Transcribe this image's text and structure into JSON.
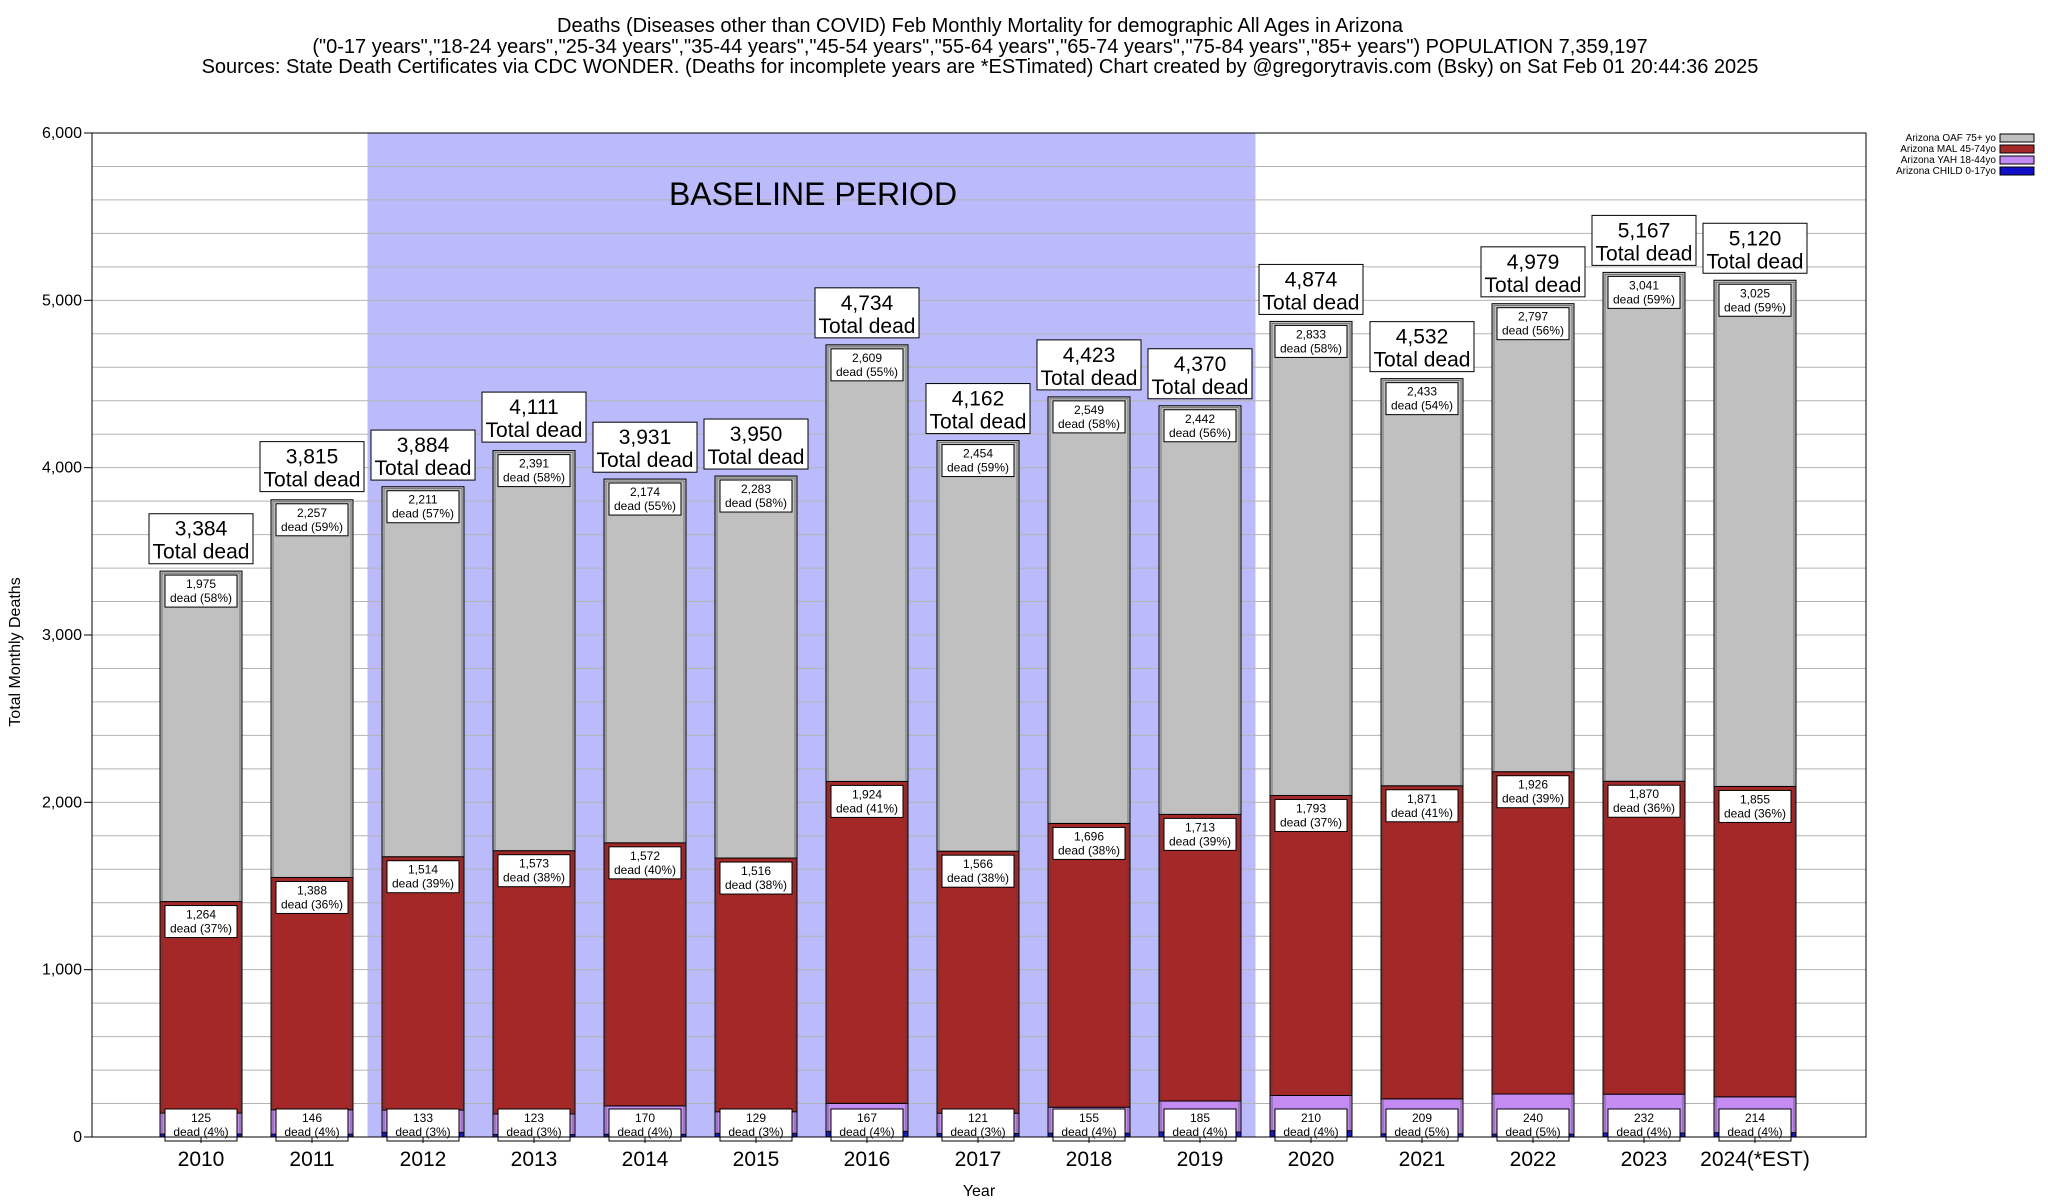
{
  "title_lines": [
    "Deaths (Diseases other than COVID) Feb Monthly Mortality for demographic All Ages in Arizona",
    "(\"0-17 years\",\"18-24 years\",\"25-34 years\",\"35-44 years\",\"45-54 years\",\"55-64 years\",\"65-74 years\",\"75-84 years\",\"85+ years\") POPULATION 7,359,197",
    "Sources: State Death Certificates via CDC WONDER. (Deaths for incomplete years are *ESTimated)                Chart created by @gregorytravis.com (Bsky) on Sat Feb 01 20:44:36 2025"
  ],
  "baseline_label": "BASELINE PERIOD",
  "total_suffix": "Total dead",
  "dead_word": "dead",
  "chart_data": {
    "type": "bar",
    "stacked": true,
    "xlabel": "Year",
    "ylabel": "Total Monthly Deaths",
    "ylim": [
      0,
      6000
    ],
    "yticks": [
      "0",
      "1,000",
      "2,000",
      "3,000",
      "4,000",
      "5,000",
      "6,000"
    ],
    "grid": true,
    "legend_position": "top-right",
    "baseline_period": [
      "2012",
      "2019"
    ],
    "categories": [
      "2010",
      "2011",
      "2012",
      "2013",
      "2014",
      "2015",
      "2016",
      "2017",
      "2018",
      "2019",
      "2020",
      "2021",
      "2022",
      "2023",
      "2024(*EST)"
    ],
    "totals": [
      3384,
      3815,
      3884,
      4111,
      3931,
      3950,
      4734,
      4162,
      4423,
      4370,
      4874,
      4532,
      4979,
      5167,
      5120
    ],
    "totals_labels": [
      "3,384",
      "3,815",
      "3,884",
      "4,111",
      "3,931",
      "3,950",
      "4,734",
      "4,162",
      "4,423",
      "4,370",
      "4,874",
      "4,532",
      "4,979",
      "5,167",
      "5,120"
    ],
    "series": [
      {
        "name": "Arizona CHILD 0-17yo",
        "color": "#1010c8",
        "values": [
          18,
          17,
          28,
          15,
          16,
          22,
          34,
          21,
          23,
          30,
          38,
          19,
          17,
          24,
          26
        ]
      },
      {
        "name": "Arizona YAH 18-44yo",
        "color": "#c48cf2",
        "values": [
          125,
          146,
          133,
          123,
          170,
          129,
          167,
          121,
          155,
          185,
          210,
          209,
          240,
          232,
          214
        ],
        "labels": [
          "125",
          "146",
          "133",
          "123",
          "170",
          "129",
          "167",
          "121",
          "155",
          "185",
          "210",
          "209",
          "240",
          "232",
          "214"
        ],
        "percents": [
          "4%",
          "4%",
          "3%",
          "3%",
          "4%",
          "3%",
          "4%",
          "3%",
          "4%",
          "4%",
          "4%",
          "5%",
          "5%",
          "4%",
          "4%"
        ]
      },
      {
        "name": "Arizona MAL 45-74yo",
        "color": "#a52828",
        "values": [
          1264,
          1388,
          1514,
          1573,
          1572,
          1516,
          1924,
          1566,
          1696,
          1713,
          1793,
          1871,
          1926,
          1870,
          1855
        ],
        "labels": [
          "1,264",
          "1,388",
          "1,514",
          "1,573",
          "1,572",
          "1,516",
          "1,924",
          "1,566",
          "1,696",
          "1,713",
          "1,793",
          "1,871",
          "1,926",
          "1,870",
          "1,855"
        ],
        "percents": [
          "37%",
          "36%",
          "39%",
          "38%",
          "40%",
          "38%",
          "41%",
          "38%",
          "38%",
          "39%",
          "37%",
          "41%",
          "39%",
          "36%",
          "36%"
        ]
      },
      {
        "name": "Arizona OAF 75+ yo",
        "color": "#c0c0c0",
        "values": [
          1975,
          2257,
          2211,
          2391,
          2174,
          2283,
          2609,
          2454,
          2549,
          2442,
          2833,
          2433,
          2797,
          3041,
          3025
        ],
        "labels": [
          "1,975",
          "2,257",
          "2,211",
          "2,391",
          "2,174",
          "2,283",
          "2,609",
          "2,454",
          "2,549",
          "2,442",
          "2,833",
          "2,433",
          "2,797",
          "3,041",
          "3,025"
        ],
        "percents": [
          "58%",
          "59%",
          "57%",
          "58%",
          "55%",
          "58%",
          "55%",
          "59%",
          "58%",
          "56%",
          "58%",
          "54%",
          "56%",
          "59%",
          "59%"
        ]
      }
    ],
    "legend_order": [
      "Arizona OAF 75+ yo",
      "Arizona MAL 45-74yo",
      "Arizona YAH 18-44yo",
      "Arizona CHILD 0-17yo"
    ]
  },
  "colors": {
    "baseline_fill": "#bbbbfb",
    "grid": "#b4b4b4",
    "axis": "#000000"
  }
}
